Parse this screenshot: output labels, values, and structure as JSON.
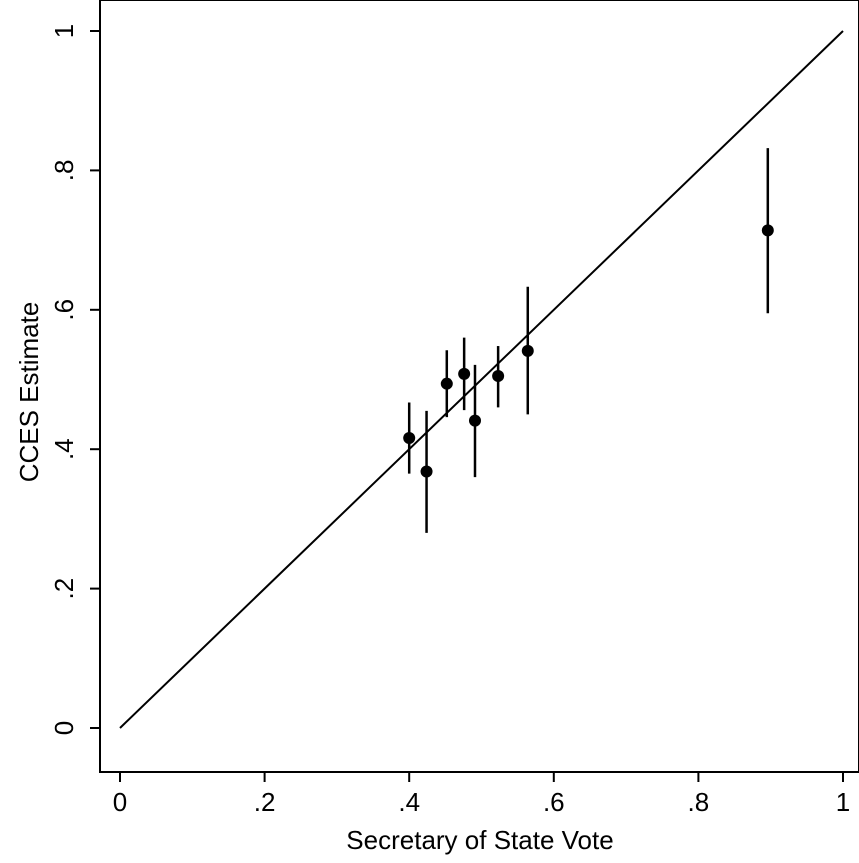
{
  "chart_data": {
    "type": "scatter",
    "xlabel": "Secretary of State Vote",
    "ylabel": "CCES Estimate",
    "xlim": [
      0,
      1
    ],
    "ylim": [
      0,
      1
    ],
    "x_ticks": [
      0,
      0.2,
      0.4,
      0.6,
      0.8,
      1
    ],
    "x_tick_labels": [
      "0",
      ".2",
      ".4",
      ".6",
      ".8",
      "1"
    ],
    "y_ticks": [
      0,
      0.2,
      0.4,
      0.6,
      0.8,
      1
    ],
    "y_tick_labels": [
      "0",
      ".2",
      ".4",
      ".6",
      ".8",
      "1"
    ],
    "reference_line": {
      "x": [
        0,
        1
      ],
      "y": [
        0,
        1
      ]
    },
    "points": [
      {
        "x": 0.4,
        "y": 0.416,
        "lo": 0.365,
        "hi": 0.467
      },
      {
        "x": 0.424,
        "y": 0.368,
        "lo": 0.28,
        "hi": 0.455
      },
      {
        "x": 0.452,
        "y": 0.494,
        "lo": 0.446,
        "hi": 0.542
      },
      {
        "x": 0.476,
        "y": 0.508,
        "lo": 0.456,
        "hi": 0.56
      },
      {
        "x": 0.491,
        "y": 0.441,
        "lo": 0.36,
        "hi": 0.521
      },
      {
        "x": 0.523,
        "y": 0.505,
        "lo": 0.46,
        "hi": 0.548
      },
      {
        "x": 0.564,
        "y": 0.541,
        "lo": 0.45,
        "hi": 0.633
      },
      {
        "x": 0.896,
        "y": 0.714,
        "lo": 0.595,
        "hi": 0.832
      }
    ],
    "grid": false,
    "colors": {
      "line": "#000000",
      "marker": "#000000",
      "background": "#ffffff"
    }
  }
}
